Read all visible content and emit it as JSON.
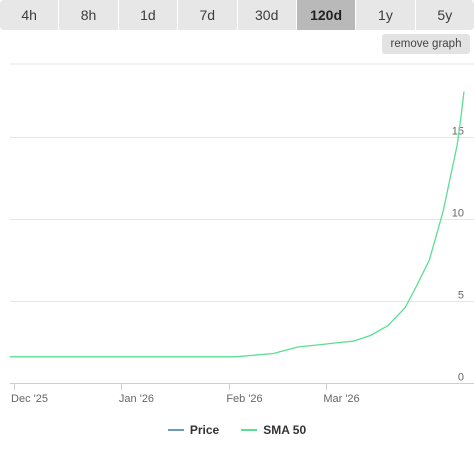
{
  "range_tabs": [
    {
      "label": "4h"
    },
    {
      "label": "8h"
    },
    {
      "label": "1d"
    },
    {
      "label": "7d"
    },
    {
      "label": "30d"
    },
    {
      "label": "120d",
      "active": true
    },
    {
      "label": "1y"
    },
    {
      "label": "5y"
    }
  ],
  "remove_graph_label": "remove graph",
  "colors": {
    "price": "#6a9bc3",
    "sma50": "#5cde93",
    "grid": "#e6e6e6",
    "axis_text": "#666666"
  },
  "chart_data": {
    "type": "line",
    "x_ticks": [
      "Dec '25",
      "Jan '26",
      "Feb '26",
      "Mar '26"
    ],
    "y_ticks": [
      0,
      5,
      10,
      15
    ],
    "ylim": [
      0,
      18.5
    ],
    "xlim": [
      "2025-12-01",
      "2026-04-11"
    ],
    "grid": true,
    "legend_position": "bottom",
    "series": [
      {
        "name": "Price",
        "x": [],
        "values": []
      },
      {
        "name": "SMA 50",
        "x": [
          "2025-12-01",
          "2025-12-15",
          "2026-01-01",
          "2026-01-15",
          "2026-02-01",
          "2026-02-04",
          "2026-02-15",
          "2026-02-22",
          "2026-03-01",
          "2026-03-05",
          "2026-03-10",
          "2026-03-15",
          "2026-03-20",
          "2026-03-25",
          "2026-03-28",
          "2026-04-01",
          "2026-04-03",
          "2026-04-05",
          "2026-04-07",
          "2026-04-09",
          "2026-04-10",
          "2026-04-11"
        ],
        "values": [
          1.6,
          1.6,
          1.6,
          1.6,
          1.6,
          1.6,
          1.8,
          2.2,
          2.35,
          2.45,
          2.55,
          2.9,
          3.5,
          4.6,
          5.8,
          7.5,
          9.0,
          10.5,
          12.5,
          14.5,
          16.0,
          17.8
        ]
      }
    ]
  }
}
